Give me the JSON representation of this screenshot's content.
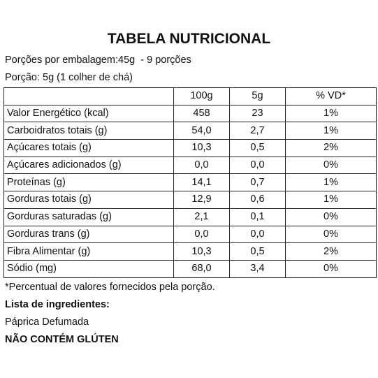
{
  "title": "TABELA NUTRICIONAL",
  "servings_line": "Porções por embalagem:45g  - 9 porções",
  "portion_line": "Porção: 5g (1 colher de chá)",
  "table": {
    "headers": [
      "",
      "100g",
      "5g",
      "% VD*"
    ],
    "rows": [
      {
        "name": "Valor Energético (kcal)",
        "per100": "458",
        "per5": "23",
        "vd": "1%"
      },
      {
        "name": "Carboidratos totais (g)",
        "per100": "54,0",
        "per5": "2,7",
        "vd": "1%"
      },
      {
        "name": "Açúcares totais (g)",
        "per100": "10,3",
        "per5": "0,5",
        "vd": "2%"
      },
      {
        "name": "Açúcares adicionados (g)",
        "per100": "0,0",
        "per5": "0,0",
        "vd": "0%"
      },
      {
        "name": "Proteínas (g)",
        "per100": "14,1",
        "per5": "0,7",
        "vd": "1%"
      },
      {
        "name": "Gorduras totais (g)",
        "per100": "12,9",
        "per5": "0,6",
        "vd": "1%"
      },
      {
        "name": "Gorduras saturadas (g)",
        "per100": "2,1",
        "per5": "0,1",
        "vd": "0%"
      },
      {
        "name": "Gorduras trans (g)",
        "per100": "0,0",
        "per5": "0,0",
        "vd": "0%"
      },
      {
        "name": "Fibra Alimentar (g)",
        "per100": "10,3",
        "per5": "0,5",
        "vd": "2%"
      },
      {
        "name": "Sódio (mg)",
        "per100": "68,0",
        "per5": "3,4",
        "vd": "0%"
      }
    ]
  },
  "footnote": "*Percentual de valores fornecidos pela porção.",
  "ingredients_heading": "Lista de ingredientes:",
  "ingredients": "Páprica Defumada",
  "gluten_notice": "NÃO CONTÉM GLÚTEN"
}
